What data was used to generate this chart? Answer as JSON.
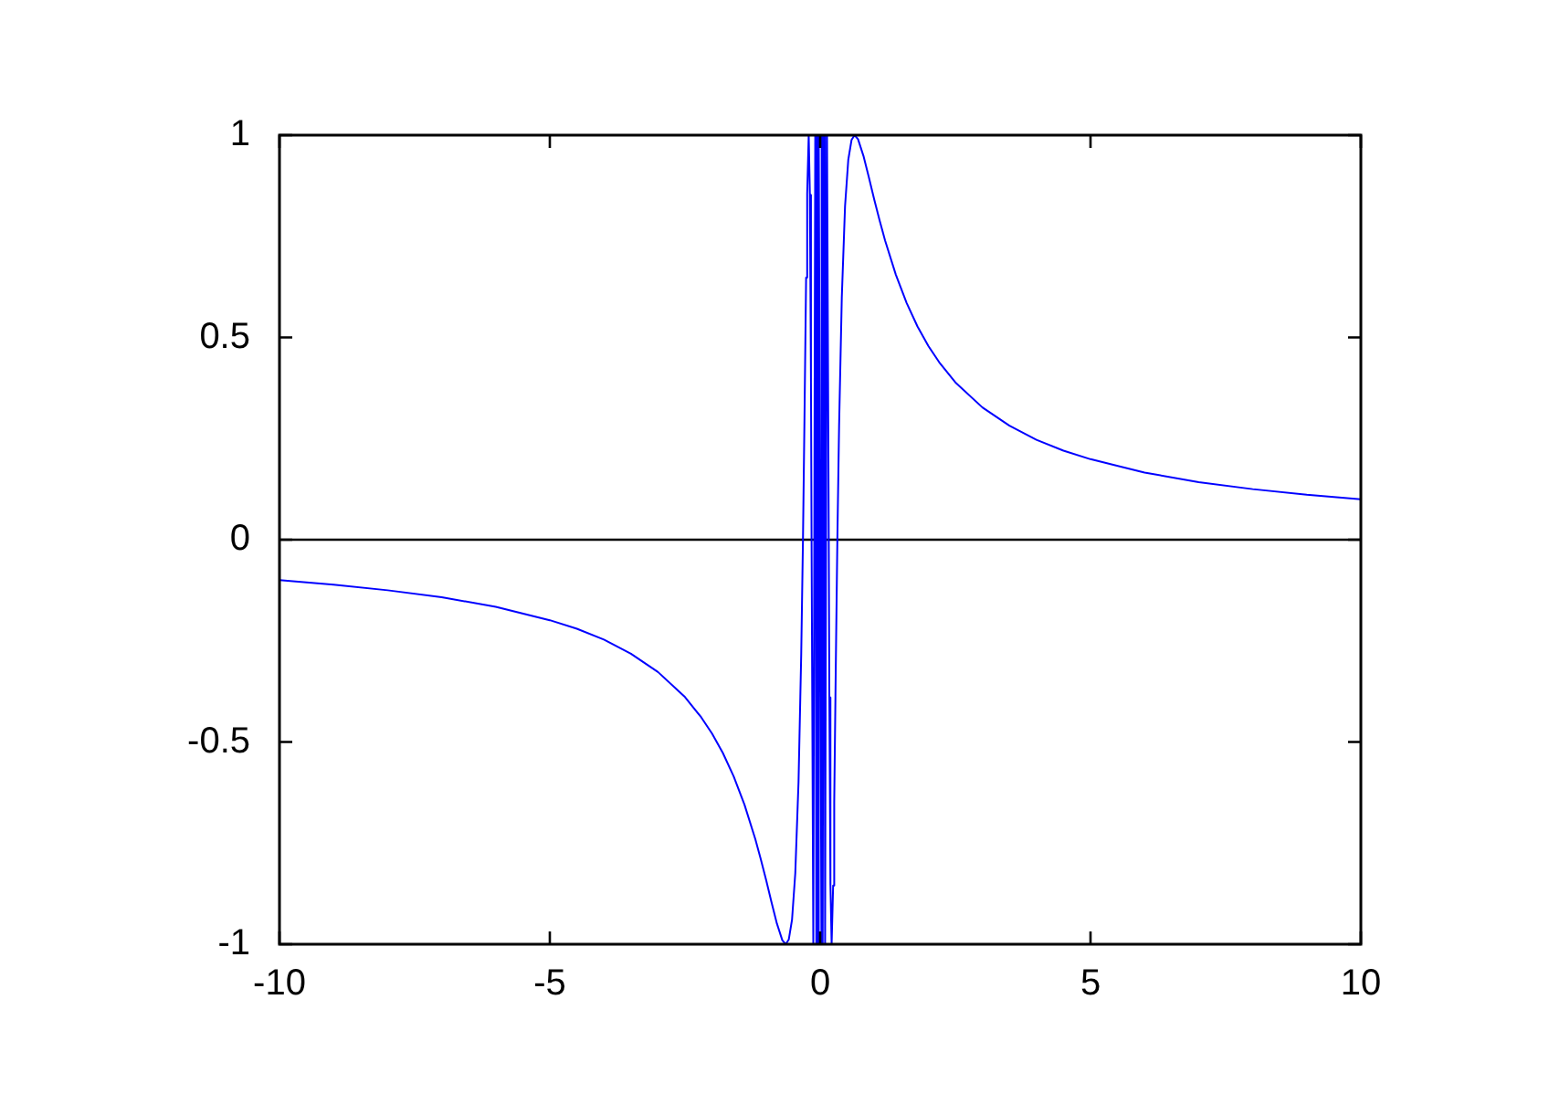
{
  "chart_data": {
    "type": "line",
    "x": [
      -10,
      -9,
      -8,
      -7,
      -6,
      -5,
      -4.5,
      -4,
      -3.5,
      -3,
      -2.5,
      -2.2,
      -2,
      -1.8,
      -1.6,
      -1.4,
      -1.2,
      -1.1,
      -1,
      -0.9,
      -0.8,
      -0.7,
      -0.637,
      -0.58,
      -0.52,
      -0.46,
      -0.4,
      -0.35,
      -0.318,
      -0.29,
      -0.26,
      -0.24,
      -0.212,
      -0.19,
      -0.17,
      -0.159,
      -0.127,
      -0.091,
      -0.071,
      -0.058,
      -0.049,
      -0.042,
      -0.038,
      -0.034,
      -0.03,
      -0.028,
      -0.026,
      -0.024,
      0.024,
      0.026,
      0.028,
      0.03,
      0.034,
      0.038,
      0.042,
      0.049,
      0.058,
      0.071,
      0.091,
      0.127,
      0.159,
      0.17,
      0.19,
      0.212,
      0.24,
      0.26,
      0.29,
      0.318,
      0.35,
      0.4,
      0.46,
      0.52,
      0.58,
      0.637,
      0.7,
      0.8,
      0.9,
      1,
      1.1,
      1.2,
      1.4,
      1.6,
      1.8,
      2,
      2.2,
      2.5,
      3,
      3.5,
      4,
      4.5,
      5,
      6,
      7,
      8,
      9,
      10
    ],
    "series": [
      {
        "color": "#0000ff",
        "values": [
          -0.1,
          -0.111,
          -0.125,
          -0.142,
          -0.166,
          -0.199,
          -0.22,
          -0.247,
          -0.282,
          -0.327,
          -0.389,
          -0.439,
          -0.479,
          -0.527,
          -0.585,
          -0.655,
          -0.74,
          -0.789,
          -0.841,
          -0.896,
          -0.949,
          -0.99,
          -1,
          -0.988,
          -0.939,
          -0.824,
          -0.598,
          -0.281,
          0,
          0.302,
          0.648,
          0.855,
          1,
          0.852,
          0.39,
          0,
          -1,
          1,
          -1,
          1,
          -1,
          1,
          -1,
          1,
          -1,
          1,
          -1,
          1,
          -1,
          1,
          -1,
          1,
          -1,
          1,
          -1,
          1,
          -1,
          1,
          -1,
          1,
          0,
          -0.39,
          -0.852,
          -1,
          -0.855,
          -0.648,
          -0.302,
          0,
          0.281,
          0.598,
          0.824,
          0.939,
          0.988,
          1,
          0.99,
          0.949,
          0.896,
          0.841,
          0.789,
          0.74,
          0.655,
          0.585,
          0.527,
          0.479,
          0.439,
          0.389,
          0.327,
          0.282,
          0.247,
          0.22,
          0.199,
          0.166,
          0.142,
          0.125,
          0.111,
          0.1
        ]
      }
    ],
    "xlim": [
      -10,
      10
    ],
    "xticks": [
      -10,
      -5,
      0,
      5,
      10
    ],
    "ylim": [
      -1,
      1
    ],
    "yticks": [
      -1,
      -0.5,
      0,
      0.5,
      1
    ],
    "ref_lines": [
      {
        "axis": "y",
        "value": 0,
        "color": "#000000"
      }
    ]
  }
}
